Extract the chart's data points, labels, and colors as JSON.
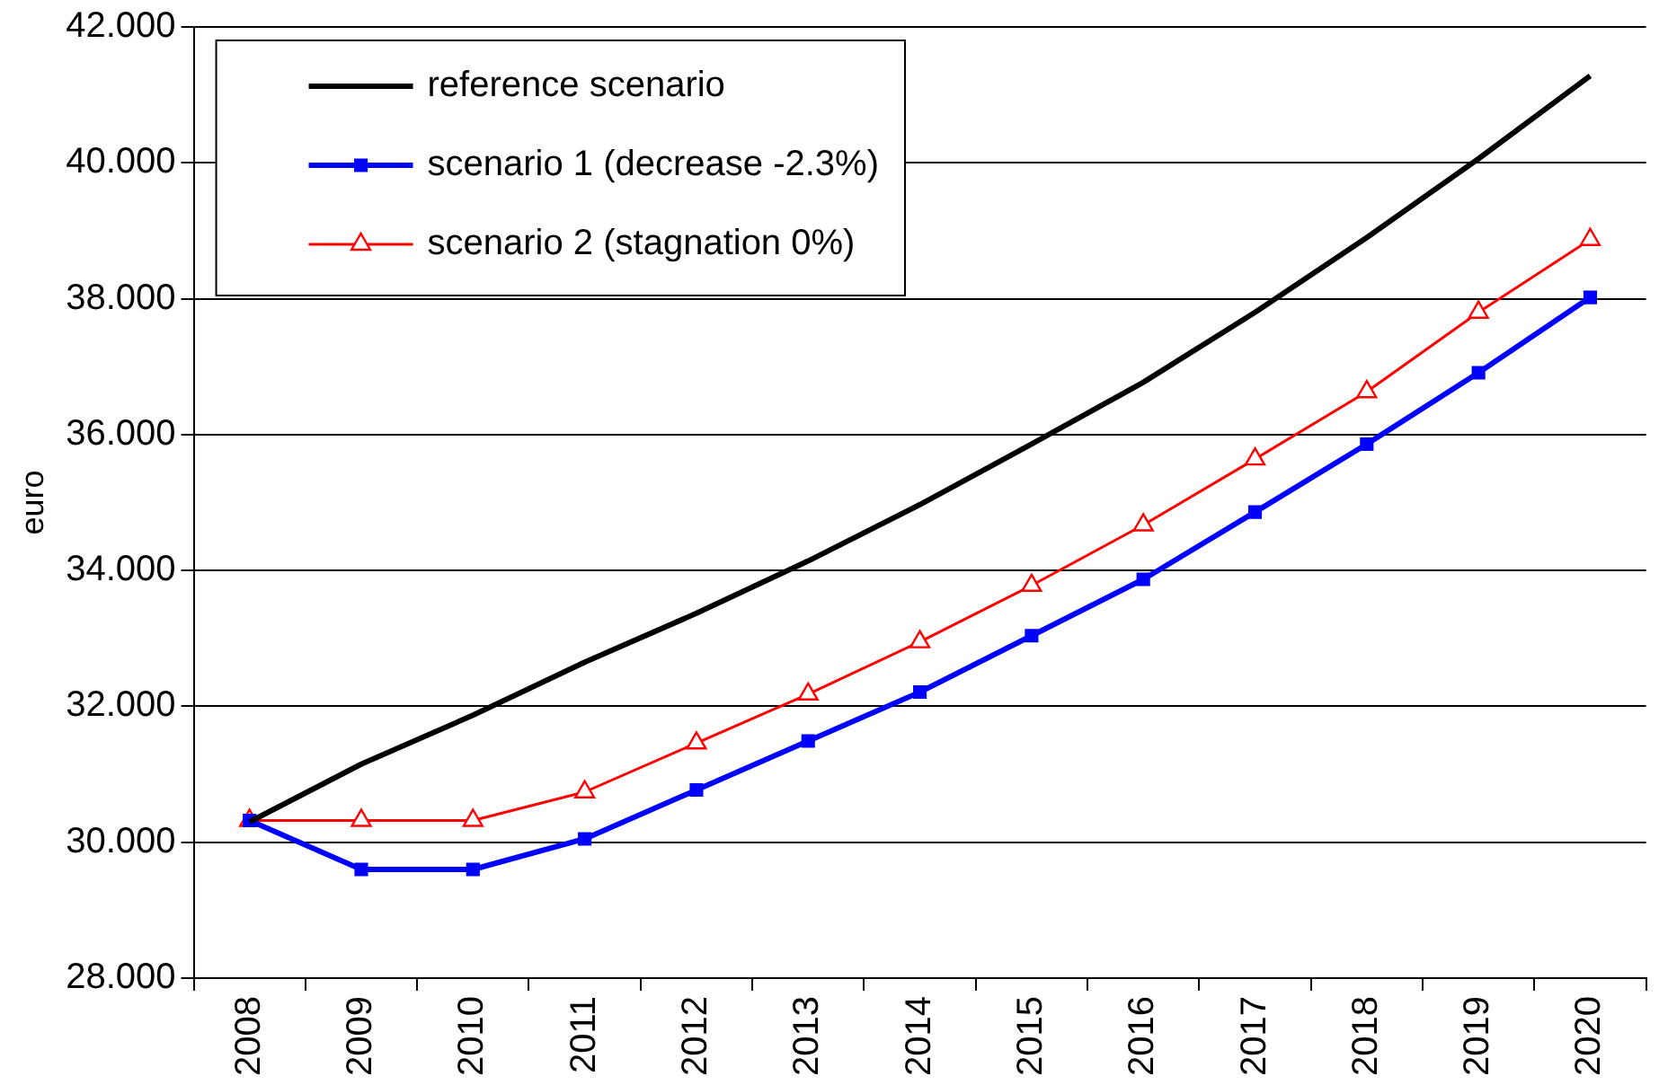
{
  "chart_data": {
    "type": "line",
    "ylabel": "euro",
    "categories": [
      "2008",
      "2009",
      "2010",
      "2011",
      "2012",
      "2013",
      "2014",
      "2015",
      "2016",
      "2017",
      "2018",
      "2019",
      "2020"
    ],
    "series": [
      {
        "name": "reference scenario",
        "color": "#000000",
        "marker": "none",
        "values": [
          30.3,
          31.15,
          31.87,
          32.65,
          33.37,
          34.14,
          34.97,
          35.86,
          36.77,
          37.8,
          38.9,
          40.06,
          41.28
        ]
      },
      {
        "name": "scenario 1 (decrease -2.3%)",
        "color": "#0000ff",
        "marker": "square",
        "values": [
          30.32,
          29.6,
          29.6,
          30.05,
          30.77,
          31.49,
          32.21,
          33.04,
          33.87,
          34.86,
          35.86,
          36.91,
          38.02
        ]
      },
      {
        "name": "scenario 2 (stagnation 0%)",
        "color": "#ff0000",
        "marker": "triangle",
        "values": [
          30.32,
          30.32,
          30.32,
          30.74,
          31.46,
          32.18,
          32.95,
          33.78,
          34.67,
          35.64,
          36.63,
          37.8,
          38.87
        ]
      }
    ],
    "ylim": [
      28,
      42
    ],
    "yticks": [
      {
        "value": 28,
        "label": "28.000"
      },
      {
        "value": 30,
        "label": "30.000"
      },
      {
        "value": 32,
        "label": "32.000"
      },
      {
        "value": 34,
        "label": "34.000"
      },
      {
        "value": 36,
        "label": "36.000"
      },
      {
        "value": 38,
        "label": "38.000"
      },
      {
        "value": 40,
        "label": "40.000"
      },
      {
        "value": 42,
        "label": "42.000"
      }
    ],
    "grid": "y",
    "legend": "top left"
  }
}
